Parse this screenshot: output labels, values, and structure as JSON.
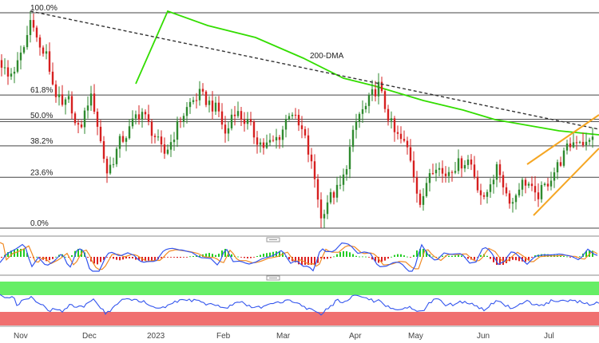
{
  "chart_data": [
    {
      "type": "candlestick",
      "panel": "price",
      "x_ticks": [
        "Nov",
        "Dec",
        "2023",
        "Feb",
        "Mar",
        "Apr",
        "May",
        "Jun",
        "Jul"
      ],
      "fib_levels": [
        {
          "label": "100.0%",
          "value": 100.0
        },
        {
          "label": "61.8%",
          "value": 61.8
        },
        {
          "label": "50.0%",
          "value": 50.0
        },
        {
          "label": "38.2%",
          "value": 38.2
        },
        {
          "label": "23.6%",
          "value": 23.6
        },
        {
          "label": "0.0%",
          "value": 0.0
        }
      ],
      "annotations": [
        {
          "text": "200-DMA",
          "color": "#33cc00"
        }
      ],
      "overlays": [
        "200-DMA moving average",
        "descending dashed trend line",
        "rising wedge channel"
      ],
      "colors": {
        "up": "#2f8a2f",
        "down": "#d62020",
        "dma": "#33dd00",
        "trend": "#333333",
        "channel": "#f5a623"
      },
      "grid": false
    },
    {
      "type": "histogram",
      "panel": "macd",
      "series": [
        "histogram",
        "signal-line",
        "macd-line"
      ],
      "colors": {
        "positive": "#22cc22",
        "negative": "#dd2222",
        "macd": "#3355ee",
        "signal": "#f08a24"
      }
    },
    {
      "type": "line",
      "panel": "rsi",
      "zones": [
        {
          "name": "overbought",
          "color": "#66ee66"
        },
        {
          "name": "oversold",
          "color": "#f07070"
        }
      ],
      "colors": {
        "line": "#3355ee"
      }
    }
  ]
}
